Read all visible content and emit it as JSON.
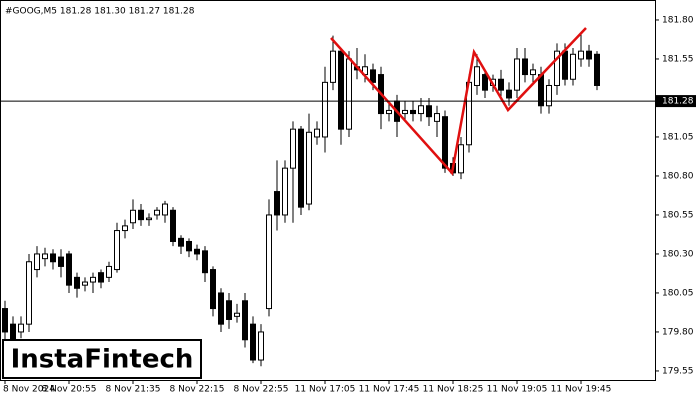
{
  "chart_data": {
    "type": "candlestick",
    "title": "#GOOG,M5  181.28 181.30 181.27 181.28",
    "watermark": "InstaFintech",
    "current_price": 181.28,
    "current_price_label": "181.28",
    "categories": [
      "8 Nov 2024",
      null,
      null,
      null,
      null,
      null,
      null,
      null,
      "8 Nov 20:55",
      null,
      null,
      null,
      null,
      null,
      null,
      null,
      "8 Nov 21:35",
      null,
      null,
      null,
      null,
      null,
      null,
      null,
      "8 Nov 22:15",
      null,
      null,
      null,
      null,
      null,
      null,
      null,
      "8 Nov 22:55",
      null,
      null,
      null,
      null,
      null,
      null,
      null,
      "11 Nov 17:05",
      null,
      null,
      null,
      null,
      null,
      null,
      null,
      "11 Nov 17:45",
      null,
      null,
      null,
      null,
      null,
      null,
      null,
      "11 Nov 18:25",
      null,
      null,
      null,
      null,
      null,
      null,
      null,
      "11 Nov 19:05",
      null,
      null,
      null,
      null,
      null,
      null,
      null,
      "11 Nov 19:45",
      null,
      null
    ],
    "open": [
      179.95,
      179.85,
      179.8,
      179.85,
      180.2,
      180.27,
      180.3,
      180.28,
      180.3,
      180.15,
      180.1,
      180.12,
      180.18,
      180.15,
      180.2,
      180.45,
      180.5,
      180.58,
      180.52,
      180.55,
      180.55,
      180.58,
      180.4,
      180.38,
      180.33,
      180.32,
      180.2,
      180.05,
      180.0,
      179.9,
      180.0,
      179.85,
      179.62,
      179.95,
      180.7,
      180.55,
      180.85,
      181.1,
      180.62,
      181.05,
      181.05,
      181.4,
      181.6,
      181.1,
      181.5,
      181.45,
      181.48,
      181.45,
      181.2,
      181.28,
      181.2,
      181.22,
      181.2,
      181.25,
      181.15,
      181.18,
      180.88,
      180.82,
      181.0,
      181.38,
      181.45,
      181.38,
      181.42,
      181.35,
      181.35,
      181.55,
      181.45,
      181.45,
      181.25,
      181.38,
      181.6,
      181.42,
      181.55,
      181.6,
      181.58
    ],
    "high": [
      180.0,
      179.9,
      179.9,
      180.3,
      180.35,
      180.34,
      180.33,
      180.33,
      180.32,
      180.18,
      180.15,
      180.18,
      180.2,
      180.25,
      180.5,
      180.52,
      180.65,
      180.62,
      180.56,
      180.6,
      180.64,
      180.6,
      180.42,
      180.4,
      180.36,
      180.35,
      180.22,
      180.08,
      180.05,
      179.98,
      180.05,
      179.9,
      179.85,
      180.65,
      180.9,
      180.9,
      181.15,
      181.12,
      181.2,
      181.15,
      181.5,
      181.7,
      181.62,
      181.6,
      181.62,
      181.58,
      181.52,
      181.5,
      181.28,
      181.32,
      181.28,
      181.28,
      181.3,
      181.3,
      181.25,
      181.22,
      180.92,
      181.05,
      181.45,
      181.58,
      181.48,
      181.45,
      181.48,
      181.4,
      181.62,
      181.62,
      181.52,
      181.5,
      181.42,
      181.65,
      181.65,
      181.62,
      181.72,
      181.64,
      181.6
    ],
    "low": [
      179.75,
      179.7,
      179.76,
      179.8,
      180.15,
      180.22,
      180.2,
      180.15,
      180.05,
      180.02,
      180.06,
      180.05,
      180.08,
      180.12,
      180.18,
      180.4,
      180.46,
      180.48,
      180.48,
      180.52,
      180.5,
      180.35,
      180.3,
      180.28,
      180.26,
      180.12,
      179.9,
      179.8,
      179.82,
      179.86,
      179.7,
      179.6,
      179.58,
      179.9,
      180.45,
      180.5,
      180.5,
      180.55,
      180.58,
      181.0,
      180.95,
      181.35,
      181.0,
      181.05,
      181.42,
      181.4,
      181.35,
      181.1,
      181.15,
      181.05,
      181.15,
      181.15,
      181.15,
      181.12,
      181.05,
      180.82,
      180.8,
      180.78,
      180.95,
      181.32,
      181.3,
      181.34,
      181.3,
      181.25,
      181.3,
      181.4,
      181.4,
      181.2,
      181.2,
      181.32,
      181.38,
      181.38,
      181.5,
      181.5,
      181.35
    ],
    "close": [
      179.8,
      179.75,
      179.85,
      180.25,
      180.3,
      180.3,
      180.25,
      180.22,
      180.1,
      180.08,
      180.12,
      180.15,
      180.12,
      180.22,
      180.45,
      180.48,
      180.58,
      180.52,
      180.53,
      180.58,
      180.62,
      180.38,
      180.35,
      180.32,
      180.3,
      180.18,
      179.95,
      179.85,
      179.88,
      179.92,
      179.75,
      179.62,
      179.8,
      180.55,
      180.55,
      180.85,
      181.1,
      180.6,
      181.08,
      181.1,
      181.4,
      181.6,
      181.1,
      181.55,
      181.48,
      181.5,
      181.4,
      181.2,
      181.22,
      181.15,
      181.22,
      181.2,
      181.25,
      181.18,
      181.2,
      180.85,
      180.82,
      181.0,
      181.4,
      181.5,
      181.35,
      181.42,
      181.35,
      181.3,
      181.55,
      181.45,
      181.48,
      181.25,
      181.38,
      181.6,
      181.42,
      181.58,
      181.6,
      181.55,
      181.38
    ],
    "ylim": [
      179.492,
      181.928
    ],
    "yticks": [
      {
        "value": 181.8,
        "label": "181.80"
      },
      181.55,
      181.05,
      {
        "value": 180.8,
        "label": "180.80"
      },
      180.55,
      {
        "value": 180.3,
        "label": "180.30"
      },
      180.05,
      {
        "value": 179.8,
        "label": "179.80"
      },
      179.55
    ],
    "up_color": "#ffffff",
    "down_color": "#000000",
    "pattern_color": "#e01010"
  }
}
